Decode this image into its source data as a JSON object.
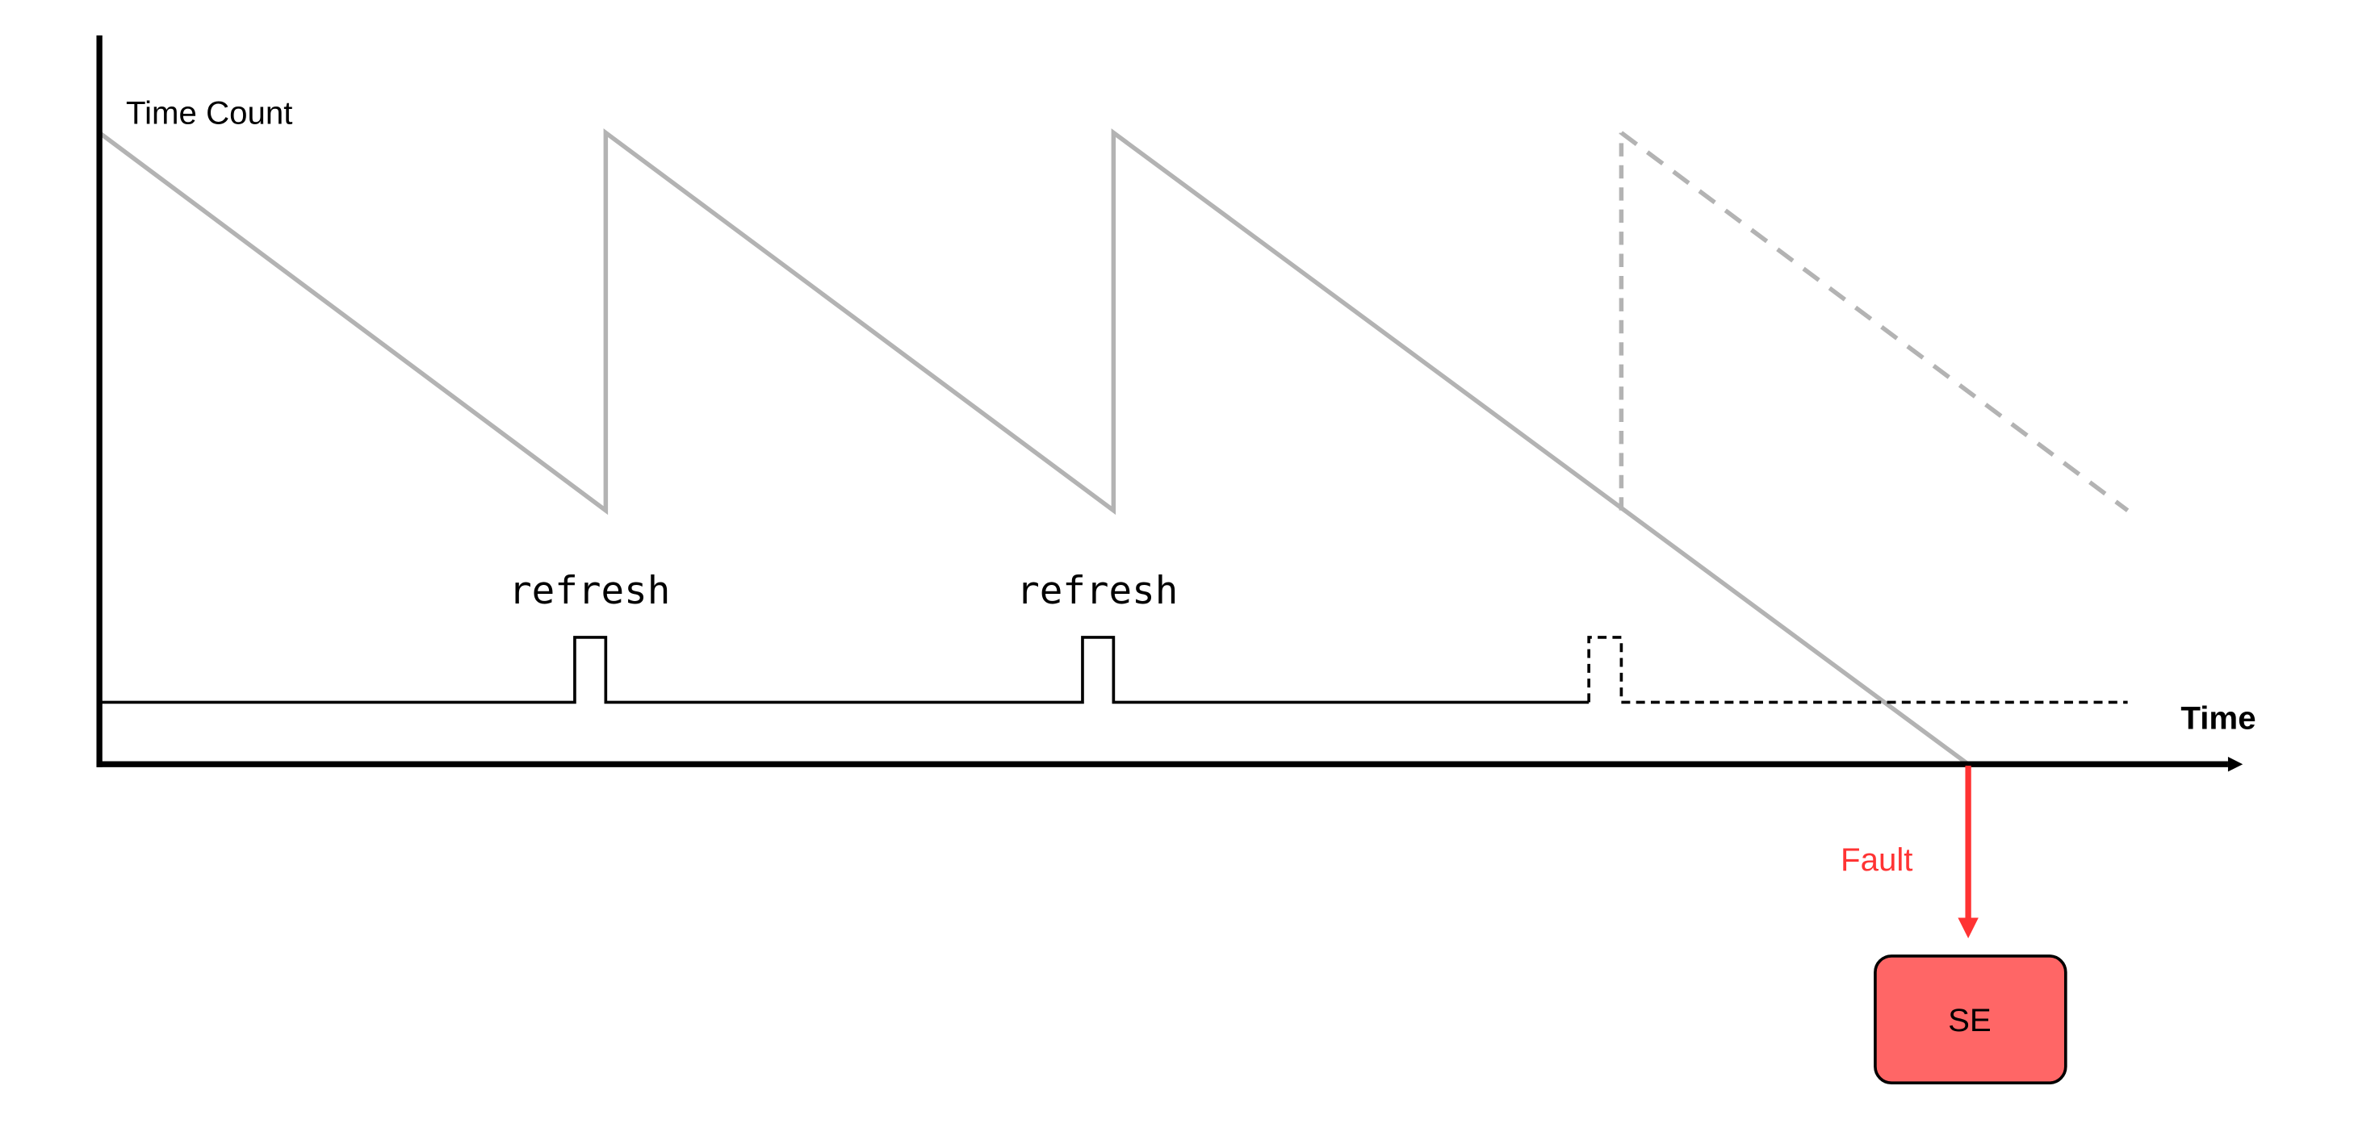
{
  "labels": {
    "y_axis": "Time Count",
    "x_axis": "Time",
    "pulse_1": "refresh",
    "pulse_2": "refresh",
    "fault": "Fault",
    "state_box": "SE"
  },
  "colors": {
    "axis": "#000000",
    "counter_line": "#b3b3b3",
    "pulse_line": "#000000",
    "fault": "#ff3333",
    "state_fill": "#ff6666",
    "state_stroke": "#000000"
  }
}
